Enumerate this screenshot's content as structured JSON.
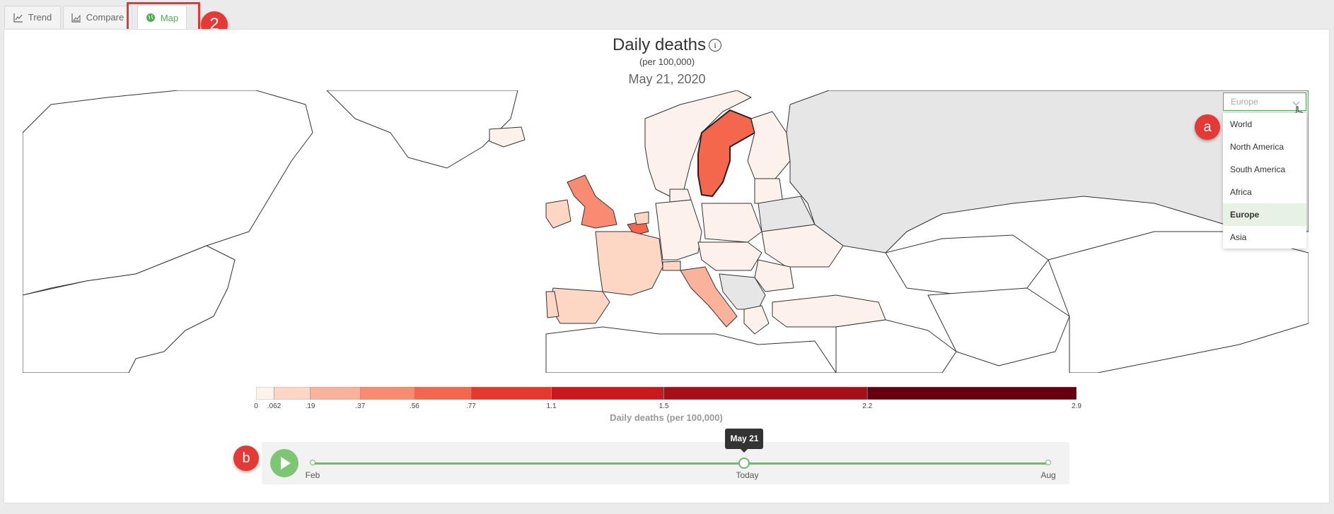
{
  "tabs": [
    {
      "label": "Trend",
      "icon": "line-chart-icon"
    },
    {
      "label": "Compare",
      "icon": "area-chart-icon"
    },
    {
      "label": "Map",
      "icon": "globe-icon",
      "active": true
    }
  ],
  "header": {
    "title": "Daily deaths",
    "subtitle": "(per 100,000)",
    "date": "May 21, 2020"
  },
  "region_select": {
    "value": "Europe",
    "options": [
      "World",
      "North America",
      "South America",
      "Africa",
      "Europe",
      "Asia"
    ],
    "selected_index": 4
  },
  "legend": {
    "title": "Daily deaths (per 100,000)",
    "ticks": [
      "0",
      ".062",
      ".19",
      ".37",
      ".56",
      ".77",
      "1.1",
      "1.5",
      "2.2",
      "2.9"
    ],
    "bins": [
      {
        "from": 0,
        "to": 0.062,
        "color": "#fff2ec"
      },
      {
        "from": 0.062,
        "to": 0.19,
        "color": "#fdd6c4"
      },
      {
        "from": 0.19,
        "to": 0.37,
        "color": "#fbb29b"
      },
      {
        "from": 0.37,
        "to": 0.56,
        "color": "#f98b70"
      },
      {
        "from": 0.56,
        "to": 0.77,
        "color": "#f4674d"
      },
      {
        "from": 0.77,
        "to": 1.1,
        "color": "#e7382c"
      },
      {
        "from": 1.1,
        "to": 1.5,
        "color": "#cb181d"
      },
      {
        "from": 1.5,
        "to": 2.2,
        "color": "#a50f15"
      },
      {
        "from": 2.2,
        "to": 2.9,
        "color": "#67000d"
      }
    ]
  },
  "timeline": {
    "start_label": "Feb",
    "current_label": "Today",
    "end_label": "Aug",
    "tooltip": "May 21",
    "position": 0.587
  },
  "annotations": {
    "tab_callout": "2",
    "dropdown_callout": "a",
    "timeline_callout": "b"
  },
  "colors": {
    "accent": "#4caf50",
    "callout": "#e53935",
    "no_data": "#e6e6e6"
  }
}
